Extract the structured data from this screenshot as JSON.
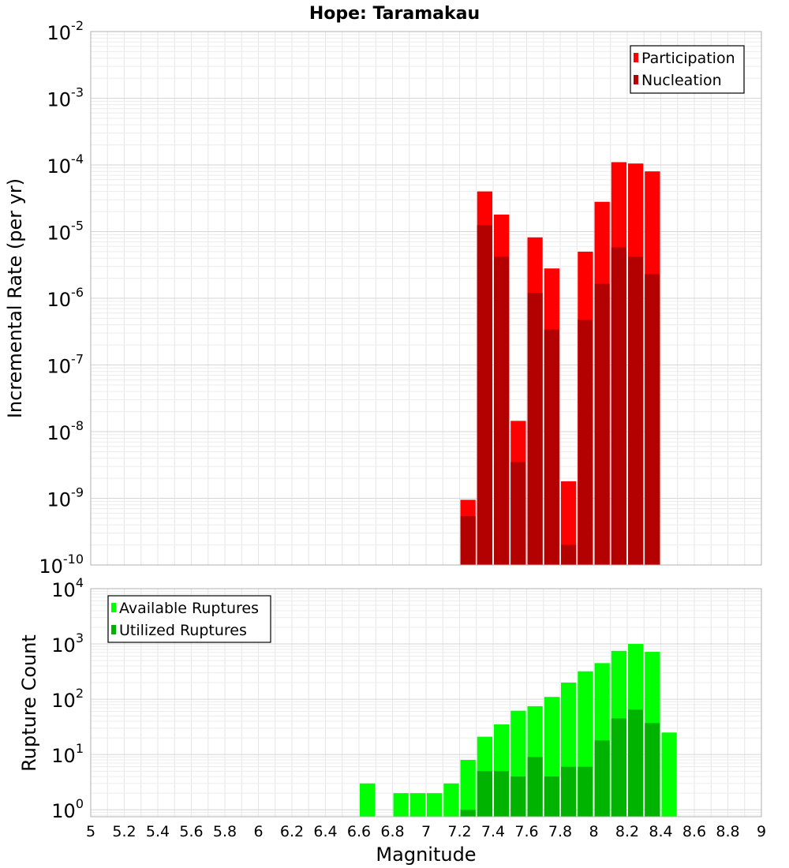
{
  "chart_data": [
    {
      "type": "bar",
      "title": "Hope: Taramakau",
      "xlabel": "",
      "ylabel": "Incremental Rate (per yr)",
      "xlim": [
        5,
        9
      ],
      "ylim": [
        1e-10,
        0.01
      ],
      "yscale": "log",
      "y_tick_exponents": [
        -10,
        -9,
        -8,
        -7,
        -6,
        -5,
        -4,
        -3,
        -2
      ],
      "y_tick_base": "10",
      "grid": true,
      "legend_position": "top-right",
      "bin_width": 0.1,
      "series": [
        {
          "name": "Participation",
          "color": "#ff0000",
          "x": [
            7.25,
            7.35,
            7.45,
            7.55,
            7.65,
            7.75,
            7.85,
            7.95,
            8.05,
            8.15,
            8.25,
            8.35
          ],
          "values": [
            9.5e-10,
            4e-05,
            1.8e-05,
            1.45e-08,
            8.2e-06,
            2.8e-06,
            1.8e-09,
            5e-06,
            2.8e-05,
            0.00011,
            0.000105,
            8e-05
          ]
        },
        {
          "name": "Nucleation",
          "color": "#b30000",
          "x": [
            7.25,
            7.35,
            7.45,
            7.55,
            7.65,
            7.75,
            7.85,
            7.95,
            8.05,
            8.15,
            8.25,
            8.35
          ],
          "values": [
            5.4e-10,
            1.25e-05,
            4.2e-06,
            3.5e-09,
            1.2e-06,
            3.4e-07,
            2e-10,
            4.8e-07,
            1.65e-06,
            5.8e-06,
            4.2e-06,
            2.3e-06
          ]
        }
      ]
    },
    {
      "type": "bar",
      "title": "",
      "xlabel": "Magnitude",
      "ylabel": "Rupture Count",
      "xlim": [
        5,
        9
      ],
      "x_ticks": [
        "5",
        "5.2",
        "5.4",
        "5.6",
        "5.8",
        "6",
        "6.2",
        "6.4",
        "6.6",
        "6.8",
        "7",
        "7.2",
        "7.4",
        "7.6",
        "7.8",
        "8",
        "8.2",
        "8.4",
        "8.6",
        "8.8",
        "9"
      ],
      "ylim": [
        0.75,
        10000.0
      ],
      "yscale": "log",
      "y_tick_exponents": [
        0,
        1,
        2,
        3,
        4
      ],
      "y_tick_base": "10",
      "grid": true,
      "legend_position": "top-left",
      "bin_width": 0.1,
      "series": [
        {
          "name": "Available Ruptures",
          "color": "#00ff00",
          "x": [
            6.65,
            6.85,
            6.95,
            7.05,
            7.15,
            7.25,
            7.35,
            7.45,
            7.55,
            7.65,
            7.75,
            7.85,
            7.95,
            8.05,
            8.15,
            8.25,
            8.35,
            8.45
          ],
          "values": [
            3,
            2,
            2,
            2,
            3,
            8,
            21,
            35,
            62,
            75,
            110,
            200,
            320,
            450,
            750,
            1000,
            720,
            25
          ]
        },
        {
          "name": "Utilized Ruptures",
          "color": "#00b300",
          "x": [
            7.25,
            7.35,
            7.45,
            7.55,
            7.65,
            7.75,
            7.85,
            7.95,
            8.05,
            8.15,
            8.25,
            8.35
          ],
          "values": [
            1,
            5,
            5,
            4,
            9,
            4,
            6,
            6,
            18,
            45,
            65,
            37
          ]
        }
      ]
    }
  ]
}
